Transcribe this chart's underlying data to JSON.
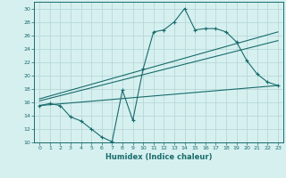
{
  "xlabel": "Humidex (Indice chaleur)",
  "bg_color": "#d6f0f0",
  "grid_color": "#b8d8d8",
  "line_color": "#1a6b6b",
  "xlim": [
    -0.5,
    23.5
  ],
  "ylim": [
    10,
    31
  ],
  "xticks": [
    0,
    1,
    2,
    3,
    4,
    5,
    6,
    7,
    8,
    9,
    10,
    11,
    12,
    13,
    14,
    15,
    16,
    17,
    18,
    19,
    20,
    21,
    22,
    23
  ],
  "yticks": [
    10,
    12,
    14,
    16,
    18,
    20,
    22,
    24,
    26,
    28,
    30
  ],
  "series1_x": [
    0,
    1,
    2,
    3,
    4,
    5,
    6,
    7,
    8,
    9,
    10,
    11,
    12,
    13,
    14,
    15,
    16,
    17,
    18,
    19,
    20,
    21,
    22,
    23
  ],
  "series1_y": [
    15.5,
    15.8,
    15.5,
    13.8,
    13.2,
    12.0,
    10.8,
    10.1,
    17.8,
    13.3,
    21.0,
    26.5,
    26.8,
    28.0,
    30.0,
    26.8,
    27.0,
    27.0,
    26.5,
    25.0,
    22.2,
    20.2,
    19.0,
    18.5
  ],
  "series2_x": [
    0,
    23
  ],
  "series2_y": [
    16.5,
    26.5
  ],
  "series3_x": [
    0,
    23
  ],
  "series3_y": [
    15.5,
    18.5
  ],
  "series4_x": [
    0,
    23
  ],
  "series4_y": [
    16.2,
    25.2
  ]
}
